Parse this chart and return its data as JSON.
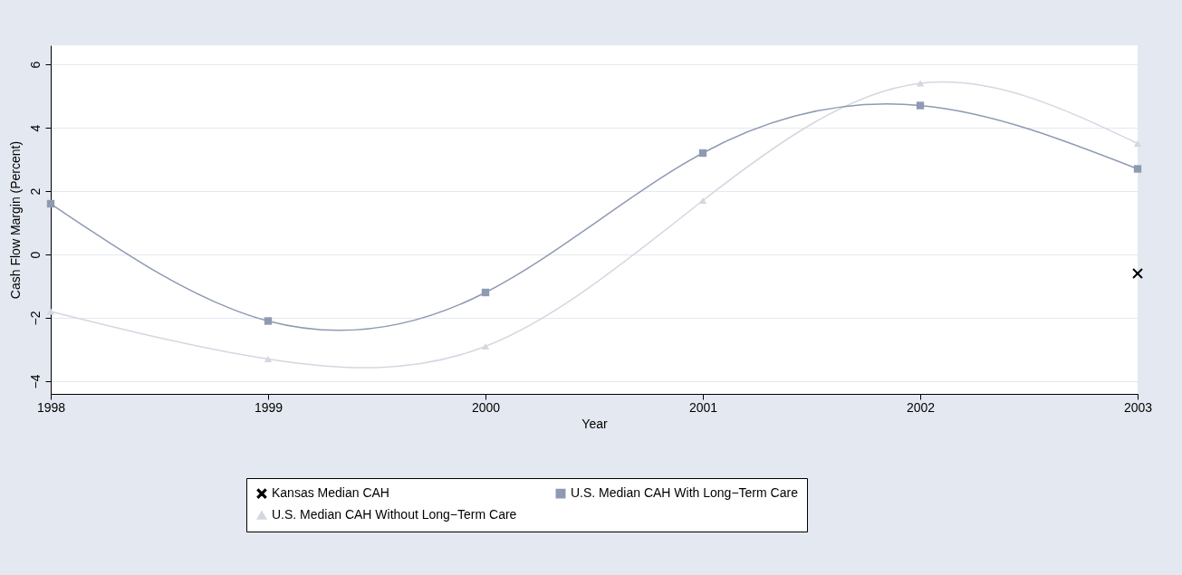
{
  "chart_data": {
    "type": "line",
    "xlabel": "Year",
    "ylabel": "Cash Flow Margin  (Percent)",
    "x": [
      1998,
      1999,
      2000,
      2001,
      2002,
      2003
    ],
    "xlim": [
      1998,
      2003
    ],
    "xticks": [
      1998,
      1999,
      2000,
      2001,
      2002,
      2003
    ],
    "ylim": [
      -4.4,
      6.6
    ],
    "yticks": [
      -4,
      -2,
      0,
      2,
      4,
      6
    ],
    "grid": "y",
    "legend": "bottom",
    "series": [
      {
        "name": "Kansas Median CAH",
        "type": "scatter",
        "marker": "cross",
        "color": "#000000",
        "x": [
          2003
        ],
        "values": [
          -0.6
        ]
      },
      {
        "name": "U.S. Median CAH Without Long−Term Care",
        "type": "line",
        "marker": "triangle",
        "color": "#d3d7e0",
        "values": [
          -1.8,
          -3.3,
          -2.9,
          1.7,
          5.4,
          3.5
        ]
      },
      {
        "name": "U.S. Median CAH With Long−Term Care",
        "type": "line",
        "marker": "square",
        "color": "#8e9ab2",
        "values": [
          1.6,
          -2.1,
          -1.2,
          3.2,
          4.7,
          2.7
        ]
      }
    ]
  }
}
